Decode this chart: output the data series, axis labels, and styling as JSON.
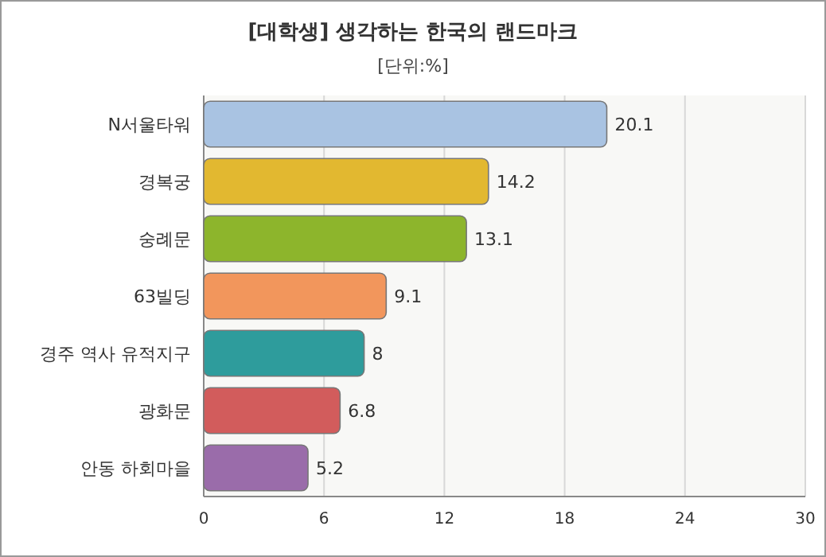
{
  "chart_data": {
    "type": "bar",
    "orientation": "horizontal",
    "title": "[대학생] 생각하는 한국의 랜드마크",
    "subtitle": "[단위:%]",
    "categories": [
      "N서울타워",
      "경복궁",
      "숭례문",
      "63빌딩",
      "경주 역사 유적지구",
      "광화문",
      "안동 하회마을"
    ],
    "values": [
      20.1,
      14.2,
      13.1,
      9.1,
      8,
      6.8,
      5.2
    ],
    "colors": [
      "#a9c3e2",
      "#e2b830",
      "#8db52c",
      "#f2965c",
      "#2e9c9c",
      "#d25c5c",
      "#9a6caa"
    ],
    "xlim": [
      0,
      30
    ],
    "xticks": [
      0,
      6,
      12,
      18,
      24,
      30
    ],
    "grid": "x",
    "data_labels": true
  }
}
